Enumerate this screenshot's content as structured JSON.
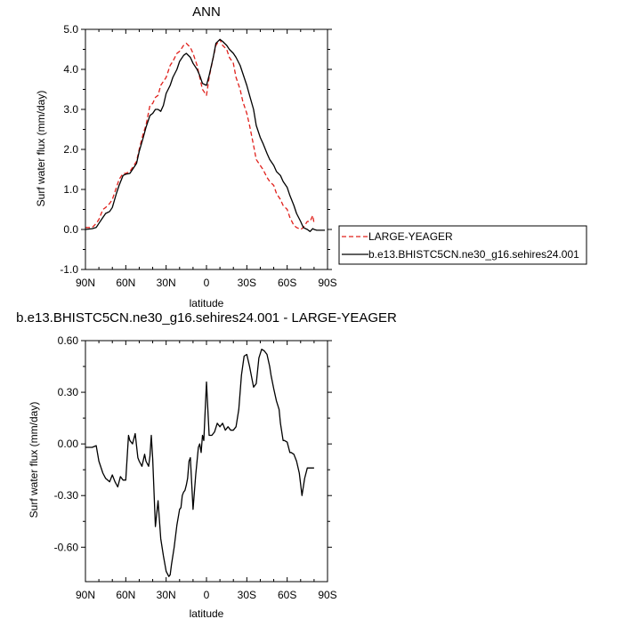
{
  "chart_data": [
    {
      "type": "line",
      "title": "ANN",
      "xlabel": "latitude",
      "ylabel": "Surf water flux (mm/day)",
      "xlim": [
        90,
        -90
      ],
      "ylim": [
        -1.0,
        5.0
      ],
      "x_ticks": [
        {
          "value": 90,
          "label": "90N"
        },
        {
          "value": 60,
          "label": "60N"
        },
        {
          "value": 30,
          "label": "30N"
        },
        {
          "value": 0,
          "label": "0"
        },
        {
          "value": -30,
          "label": "30S"
        },
        {
          "value": -60,
          "label": "60S"
        },
        {
          "value": -90,
          "label": "90S"
        }
      ],
      "y_ticks": [
        {
          "value": 5.0,
          "label": "5.0"
        },
        {
          "value": 4.0,
          "label": "4.0"
        },
        {
          "value": 3.0,
          "label": "3.0"
        },
        {
          "value": 2.0,
          "label": "2.0"
        },
        {
          "value": 1.0,
          "label": "1.0"
        },
        {
          "value": 0.0,
          "label": "0.0"
        },
        {
          "value": -1.0,
          "label": "-1.0"
        }
      ],
      "legend": "right",
      "series": [
        {
          "name": "LARGE-YEAGER",
          "color": "#e0201b",
          "dash": "dashed",
          "x": [
            90,
            85,
            82,
            80,
            77,
            75,
            72,
            70,
            67,
            65,
            62,
            60,
            57,
            55,
            52,
            50,
            47,
            45,
            42,
            40,
            38,
            36,
            34,
            32,
            30,
            27,
            25,
            22,
            20,
            17,
            15,
            12,
            10,
            7,
            5,
            3,
            0,
            -2,
            -5,
            -7,
            -10,
            -12,
            -15,
            -17,
            -20,
            -22,
            -25,
            -27,
            -30,
            -32,
            -35,
            -37,
            -40,
            -42,
            -45,
            -47,
            -50,
            -52,
            -55,
            -57,
            -60,
            -62,
            -65,
            -67,
            -70,
            -72,
            -75,
            -77,
            -79,
            -80
          ],
          "y": [
            0.05,
            0.05,
            0.15,
            0.25,
            0.5,
            0.55,
            0.65,
            0.75,
            1.05,
            1.25,
            1.4,
            1.4,
            1.45,
            1.55,
            1.7,
            2.0,
            2.4,
            2.6,
            3.1,
            3.15,
            3.3,
            3.35,
            3.6,
            3.7,
            3.8,
            4.1,
            4.2,
            4.4,
            4.45,
            4.6,
            4.65,
            4.55,
            4.4,
            4.1,
            3.8,
            3.5,
            3.35,
            3.8,
            4.3,
            4.6,
            4.75,
            4.6,
            4.5,
            4.3,
            4.15,
            3.8,
            3.5,
            3.2,
            2.9,
            2.6,
            2.1,
            1.75,
            1.6,
            1.5,
            1.3,
            1.2,
            1.1,
            0.9,
            0.75,
            0.6,
            0.5,
            0.3,
            0.1,
            0.05,
            0.0,
            0.05,
            0.2,
            0.2,
            0.35,
            0.15
          ]
        },
        {
          "name": "b.e13.BHISTC5CN.ne30_g16.sehires24.001",
          "color": "#000000",
          "dash": "solid",
          "x": [
            90,
            85,
            82,
            80,
            77,
            75,
            72,
            70,
            67,
            65,
            62,
            60,
            57,
            55,
            52,
            50,
            47,
            45,
            42,
            40,
            38,
            36,
            34,
            32,
            30,
            27,
            25,
            22,
            20,
            17,
            15,
            12,
            10,
            7,
            5,
            3,
            0,
            -2,
            -5,
            -7,
            -10,
            -12,
            -15,
            -17,
            -20,
            -22,
            -25,
            -27,
            -30,
            -32,
            -35,
            -37,
            -40,
            -42,
            -45,
            -47,
            -50,
            -52,
            -55,
            -57,
            -60,
            -62,
            -65,
            -67,
            -70,
            -72,
            -75,
            -77,
            -79,
            -80,
            -82,
            -85,
            -88
          ],
          "y": [
            0.0,
            0.02,
            0.05,
            0.15,
            0.3,
            0.4,
            0.45,
            0.55,
            0.9,
            1.1,
            1.35,
            1.38,
            1.4,
            1.5,
            1.65,
            1.95,
            2.3,
            2.55,
            2.85,
            2.9,
            3.0,
            3.0,
            2.95,
            3.1,
            3.4,
            3.6,
            3.8,
            4.0,
            4.2,
            4.35,
            4.4,
            4.3,
            4.15,
            4.0,
            3.85,
            3.65,
            3.6,
            3.85,
            4.3,
            4.65,
            4.75,
            4.7,
            4.6,
            4.5,
            4.4,
            4.3,
            4.1,
            3.9,
            3.6,
            3.35,
            3.0,
            2.6,
            2.3,
            2.15,
            1.9,
            1.75,
            1.6,
            1.45,
            1.35,
            1.2,
            1.05,
            0.85,
            0.6,
            0.4,
            0.2,
            0.05,
            0.0,
            -0.05,
            0.02,
            0.0,
            -0.02,
            -0.02,
            -0.02
          ]
        }
      ]
    },
    {
      "type": "line",
      "title": "b.e13.BHISTC5CN.ne30_g16.sehires24.001 - LARGE-YEAGER",
      "xlabel": "latitude",
      "ylabel": "Surf water flux (mm/day)",
      "xlim": [
        90,
        -90
      ],
      "ylim": [
        -0.8,
        0.6
      ],
      "x_ticks": [
        {
          "value": 90,
          "label": "90N"
        },
        {
          "value": 60,
          "label": "60N"
        },
        {
          "value": 30,
          "label": "30N"
        },
        {
          "value": 0,
          "label": "0"
        },
        {
          "value": -30,
          "label": "30S"
        },
        {
          "value": -60,
          "label": "60S"
        },
        {
          "value": -90,
          "label": "90S"
        }
      ],
      "y_ticks": [
        {
          "value": 0.6,
          "label": "0.60"
        },
        {
          "value": 0.3,
          "label": "0.30"
        },
        {
          "value": 0.0,
          "label": "0.00"
        },
        {
          "value": -0.3,
          "label": "-0.30"
        },
        {
          "value": -0.6,
          "label": "-0.60"
        }
      ],
      "series": [
        {
          "color": "#000000",
          "x": [
            90,
            85,
            82,
            80,
            77,
            75,
            72,
            70,
            68,
            66,
            64,
            62,
            60,
            58,
            57,
            55,
            53,
            51,
            50,
            48,
            46,
            45,
            43,
            42,
            41,
            40,
            38,
            36,
            34,
            32,
            30,
            28,
            27,
            26,
            24,
            22,
            20,
            19,
            18,
            17,
            16,
            15,
            14,
            13,
            12,
            10,
            8,
            6,
            5,
            4,
            3,
            2,
            0,
            -2,
            -4,
            -6,
            -8,
            -10,
            -12,
            -14,
            -16,
            -18,
            -20,
            -22,
            -24,
            -26,
            -28,
            -30,
            -32,
            -35,
            -37,
            -39,
            -41,
            -43,
            -45,
            -47,
            -48,
            -50,
            -52,
            -54,
            -55,
            -57,
            -58,
            -60,
            -62,
            -63,
            -65,
            -67,
            -69,
            -71,
            -73,
            -75,
            -77,
            -79,
            -80
          ],
          "y": [
            -0.02,
            -0.02,
            -0.01,
            -0.1,
            -0.17,
            -0.2,
            -0.22,
            -0.18,
            -0.22,
            -0.25,
            -0.19,
            -0.21,
            -0.21,
            0.05,
            0.02,
            0.0,
            0.06,
            -0.08,
            -0.1,
            -0.13,
            -0.06,
            -0.1,
            -0.13,
            -0.07,
            0.05,
            -0.09,
            -0.48,
            -0.33,
            -0.55,
            -0.65,
            -0.74,
            -0.77,
            -0.76,
            -0.7,
            -0.6,
            -0.47,
            -0.38,
            -0.37,
            -0.3,
            -0.28,
            -0.27,
            -0.24,
            -0.2,
            -0.1,
            -0.08,
            -0.38,
            -0.18,
            -0.02,
            0.0,
            -0.05,
            0.05,
            0.02,
            0.36,
            0.05,
            0.05,
            0.07,
            0.12,
            0.1,
            0.12,
            0.08,
            0.1,
            0.08,
            0.08,
            0.1,
            0.2,
            0.4,
            0.51,
            0.52,
            0.45,
            0.33,
            0.35,
            0.5,
            0.55,
            0.54,
            0.52,
            0.45,
            0.4,
            0.32,
            0.25,
            0.2,
            0.12,
            0.02,
            0.02,
            0.01,
            -0.05,
            -0.05,
            -0.06,
            -0.1,
            -0.17,
            -0.3,
            -0.2,
            -0.14,
            -0.14,
            -0.14,
            -0.14
          ]
        }
      ]
    }
  ]
}
